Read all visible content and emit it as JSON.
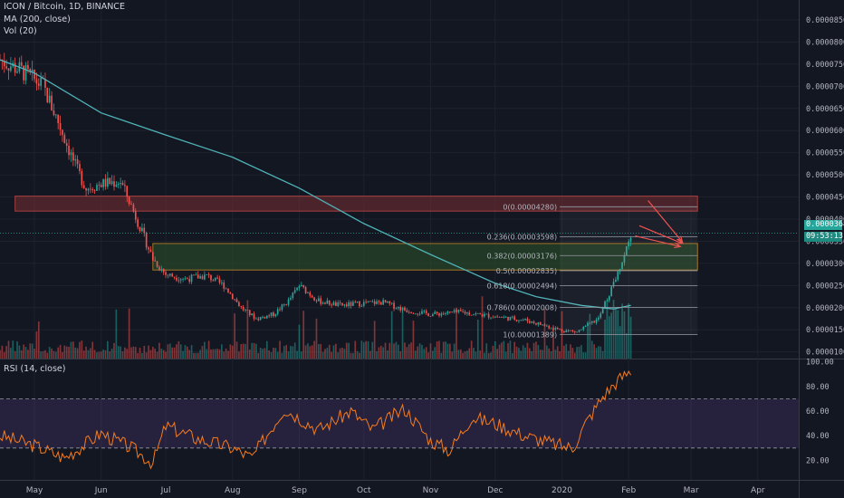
{
  "header": {
    "symbol_line": "ICON / Bitcoin, 1D, BINANCE",
    "ma_line": "MA (200, close)",
    "vol_line": "Vol (20)",
    "rsi_line": "RSI (14, close)"
  },
  "price_tags": {
    "last_price": "0.00003681",
    "countdown": "09:53:13"
  },
  "colors": {
    "background": "#131722",
    "up": "#26a69a",
    "down": "#ef5350",
    "ma": "#4fb3b8",
    "rsi": "#f57c1f",
    "fib_red_zone": "#7a2e33",
    "fib_green_zone": "#2c4f2a"
  },
  "chart_data": [
    {
      "type": "candlestick",
      "title": "ICON / Bitcoin, 1D, BINANCE",
      "x_ticks": [
        "May",
        "Jun",
        "Jul",
        "Aug",
        "Sep",
        "Oct",
        "Nov",
        "Dec",
        "2020",
        "Feb",
        "Mar",
        "Apr"
      ],
      "y_ticks": [
        "0.00008500",
        "0.00008000",
        "0.00007500",
        "0.00007000",
        "0.00006500",
        "0.00006000",
        "0.00005500",
        "0.00005000",
        "0.00004500",
        "0.00004000",
        "0.00003500",
        "0.00003000",
        "0.00002500",
        "0.00002000",
        "0.00001500",
        "0.00001000"
      ],
      "ylim": [
        8.5e-06,
        8.95e-05
      ],
      "anchors_price": [
        [
          "2019-04-15",
          7.6e-05
        ],
        [
          "2019-04-25",
          7.35e-05
        ],
        [
          "2019-05-05",
          7e-05
        ],
        [
          "2019-05-12",
          6.2e-05
        ],
        [
          "2019-05-20",
          5.2e-05
        ],
        [
          "2019-05-25",
          4.7e-05
        ],
        [
          "2019-06-01",
          4.8e-05
        ],
        [
          "2019-06-10",
          4.85e-05
        ],
        [
          "2019-06-15",
          4.3e-05
        ],
        [
          "2019-06-20",
          3.7e-05
        ],
        [
          "2019-06-25",
          3.1e-05
        ],
        [
          "2019-07-01",
          2.75e-05
        ],
        [
          "2019-07-10",
          2.65e-05
        ],
        [
          "2019-07-20",
          2.72e-05
        ],
        [
          "2019-07-28",
          2.5e-05
        ],
        [
          "2019-08-05",
          2e-05
        ],
        [
          "2019-08-12",
          1.75e-05
        ],
        [
          "2019-08-20",
          1.85e-05
        ],
        [
          "2019-08-27",
          2.15e-05
        ],
        [
          "2019-09-01",
          2.5e-05
        ],
        [
          "2019-09-10",
          2.15e-05
        ],
        [
          "2019-09-20",
          2.05e-05
        ],
        [
          "2019-10-01",
          2.1e-05
        ],
        [
          "2019-10-10",
          2.12e-05
        ],
        [
          "2019-10-20",
          1.95e-05
        ],
        [
          "2019-11-01",
          1.85e-05
        ],
        [
          "2019-11-15",
          1.9e-05
        ],
        [
          "2019-12-01",
          1.8e-05
        ],
        [
          "2019-12-15",
          1.72e-05
        ],
        [
          "2019-12-31",
          1.5e-05
        ],
        [
          "2020-01-08",
          1.45e-05
        ],
        [
          "2020-01-18",
          1.75e-05
        ],
        [
          "2020-01-25",
          2.55e-05
        ],
        [
          "2020-01-29",
          3.05e-05
        ],
        [
          "2020-02-02",
          3.68e-05
        ]
      ],
      "ma_200": [
        [
          "2019-04-15",
          7.6e-05
        ],
        [
          "2019-05-01",
          7.3e-05
        ],
        [
          "2019-06-01",
          6.4e-05
        ],
        [
          "2019-07-01",
          5.9e-05
        ],
        [
          "2019-08-01",
          5.4e-05
        ],
        [
          "2019-09-01",
          4.7e-05
        ],
        [
          "2019-10-01",
          3.9e-05
        ],
        [
          "2019-11-01",
          3.2e-05
        ],
        [
          "2019-12-01",
          2.55e-05
        ],
        [
          "2019-12-20",
          2.25e-05
        ],
        [
          "2020-01-10",
          2.05e-05
        ],
        [
          "2020-01-25",
          1.97e-05
        ],
        [
          "2020-02-02",
          2.05e-05
        ]
      ],
      "rsi_14": [
        [
          "2019-04-15",
          40
        ],
        [
          "2019-05-01",
          32
        ],
        [
          "2019-05-15",
          22
        ],
        [
          "2019-06-01",
          42
        ],
        [
          "2019-06-15",
          30
        ],
        [
          "2019-06-25",
          18
        ],
        [
          "2019-07-01",
          48
        ],
        [
          "2019-07-15",
          38
        ],
        [
          "2019-08-01",
          30
        ],
        [
          "2019-08-10",
          22
        ],
        [
          "2019-08-25",
          62
        ],
        [
          "2019-09-10",
          45
        ],
        [
          "2019-09-25",
          60
        ],
        [
          "2019-10-05",
          45
        ],
        [
          "2019-10-20",
          62
        ],
        [
          "2019-11-01",
          36
        ],
        [
          "2019-11-10",
          28
        ],
        [
          "2019-11-20",
          55
        ],
        [
          "2019-12-01",
          50
        ],
        [
          "2019-12-15",
          40
        ],
        [
          "2019-12-31",
          32
        ],
        [
          "2020-01-06",
          30
        ],
        [
          "2020-01-12",
          50
        ],
        [
          "2020-01-20",
          72
        ],
        [
          "2020-01-27",
          85
        ],
        [
          "2020-02-02",
          93
        ]
      ],
      "rsi_ticks": [
        "100.00",
        "80.00",
        "60.00",
        "40.00",
        "20.00"
      ],
      "rsi_ylim": [
        10,
        102
      ],
      "rsi_bands": [
        30,
        70
      ],
      "fib_levels": [
        {
          "label": "0(0.00004280)",
          "value": 4.28e-05
        },
        {
          "label": "0.236(0.00003598)",
          "value": 3.598e-05
        },
        {
          "label": "0.382(0.00003176)",
          "value": 3.176e-05
        },
        {
          "label": "0.5(0.00002835)",
          "value": 2.835e-05
        },
        {
          "label": "0.618(0.00002494)",
          "value": 2.494e-05
        },
        {
          "label": "0.786(0.00002008)",
          "value": 2.008e-05
        },
        {
          "label": "1(0.00001389)",
          "value": 1.389e-05
        }
      ],
      "zones": [
        {
          "name": "resistance",
          "from": 4.18e-05,
          "to": 4.52e-05
        },
        {
          "name": "support",
          "from": 2.85e-05,
          "to": 3.45e-05
        }
      ]
    }
  ]
}
